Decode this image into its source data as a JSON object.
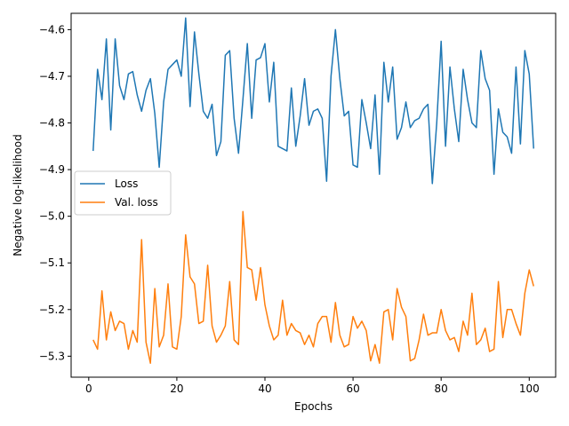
{
  "chart_data": {
    "type": "line",
    "xlabel": "Epochs",
    "ylabel": "Negative log-likelihood",
    "xlim": [
      -4,
      106
    ],
    "ylim": [
      -5.345,
      -4.565
    ],
    "xticks": [
      0,
      20,
      40,
      60,
      80,
      100
    ],
    "yticks": [
      -4.6,
      -4.7,
      -4.8,
      -4.9,
      -5.0,
      -5.1,
      -5.2,
      -5.3
    ],
    "ytick_labels": [
      "−4.6",
      "−4.7",
      "−4.8",
      "−4.9",
      "−5.0",
      "−5.1",
      "−5.2",
      "−5.3"
    ],
    "legend_position": "center-left",
    "grid": false,
    "x": [
      1,
      2,
      3,
      4,
      5,
      6,
      7,
      8,
      9,
      10,
      11,
      12,
      13,
      14,
      15,
      16,
      17,
      18,
      19,
      20,
      21,
      22,
      23,
      24,
      25,
      26,
      27,
      28,
      29,
      30,
      31,
      32,
      33,
      34,
      35,
      36,
      37,
      38,
      39,
      40,
      41,
      42,
      43,
      44,
      45,
      46,
      47,
      48,
      49,
      50,
      51,
      52,
      53,
      54,
      55,
      56,
      57,
      58,
      59,
      60,
      61,
      62,
      63,
      64,
      65,
      66,
      67,
      68,
      69,
      70,
      71,
      72,
      73,
      74,
      75,
      76,
      77,
      78,
      79,
      80,
      81,
      82,
      83,
      84,
      85,
      86,
      87,
      88,
      89,
      90,
      91,
      92,
      93,
      94,
      95,
      96,
      97,
      98,
      99,
      100,
      101
    ],
    "series": [
      {
        "name": "Loss",
        "color": "#1f77b4",
        "values": [
          -4.86,
          -4.685,
          -4.75,
          -4.62,
          -4.815,
          -4.62,
          -4.72,
          -4.75,
          -4.695,
          -4.69,
          -4.74,
          -4.775,
          -4.73,
          -4.705,
          -4.78,
          -4.895,
          -4.755,
          -4.685,
          -4.675,
          -4.665,
          -4.7,
          -4.575,
          -4.765,
          -4.605,
          -4.695,
          -4.775,
          -4.79,
          -4.76,
          -4.87,
          -4.84,
          -4.655,
          -4.645,
          -4.79,
          -4.865,
          -4.75,
          -4.63,
          -4.79,
          -4.665,
          -4.66,
          -4.63,
          -4.755,
          -4.67,
          -4.85,
          -4.855,
          -4.86,
          -4.725,
          -4.85,
          -4.785,
          -4.705,
          -4.805,
          -4.775,
          -4.77,
          -4.79,
          -4.925,
          -4.7,
          -4.6,
          -4.705,
          -4.785,
          -4.775,
          -4.89,
          -4.895,
          -4.75,
          -4.8,
          -4.855,
          -4.74,
          -4.91,
          -4.67,
          -4.755,
          -4.68,
          -4.835,
          -4.81,
          -4.755,
          -4.81,
          -4.795,
          -4.79,
          -4.77,
          -4.76,
          -4.93,
          -4.8,
          -4.625,
          -4.85,
          -4.68,
          -4.77,
          -4.84,
          -4.685,
          -4.75,
          -4.8,
          -4.81,
          -4.645,
          -4.705,
          -4.73,
          -4.91,
          -4.77,
          -4.82,
          -4.83,
          -4.865,
          -4.68,
          -4.845,
          -4.645,
          -4.695,
          -4.855
        ]
      },
      {
        "name": "Val. loss",
        "color": "#ff7f0e",
        "values": [
          -5.265,
          -5.285,
          -5.16,
          -5.265,
          -5.205,
          -5.245,
          -5.225,
          -5.23,
          -5.285,
          -5.245,
          -5.27,
          -5.05,
          -5.27,
          -5.315,
          -5.155,
          -5.28,
          -5.255,
          -5.145,
          -5.28,
          -5.285,
          -5.215,
          -5.04,
          -5.13,
          -5.145,
          -5.23,
          -5.225,
          -5.105,
          -5.235,
          -5.27,
          -5.255,
          -5.235,
          -5.14,
          -5.265,
          -5.275,
          -4.99,
          -5.11,
          -5.115,
          -5.18,
          -5.11,
          -5.19,
          -5.235,
          -5.265,
          -5.255,
          -5.18,
          -5.255,
          -5.23,
          -5.245,
          -5.25,
          -5.275,
          -5.255,
          -5.28,
          -5.23,
          -5.215,
          -5.215,
          -5.27,
          -5.185,
          -5.255,
          -5.28,
          -5.275,
          -5.215,
          -5.24,
          -5.225,
          -5.245,
          -5.31,
          -5.275,
          -5.315,
          -5.205,
          -5.2,
          -5.265,
          -5.155,
          -5.195,
          -5.215,
          -5.31,
          -5.305,
          -5.265,
          -5.21,
          -5.255,
          -5.25,
          -5.25,
          -5.2,
          -5.245,
          -5.265,
          -5.26,
          -5.29,
          -5.225,
          -5.255,
          -5.165,
          -5.275,
          -5.265,
          -5.24,
          -5.29,
          -5.285,
          -5.14,
          -5.26,
          -5.2,
          -5.2,
          -5.23,
          -5.255,
          -5.165,
          -5.115,
          -5.15
        ]
      }
    ]
  }
}
